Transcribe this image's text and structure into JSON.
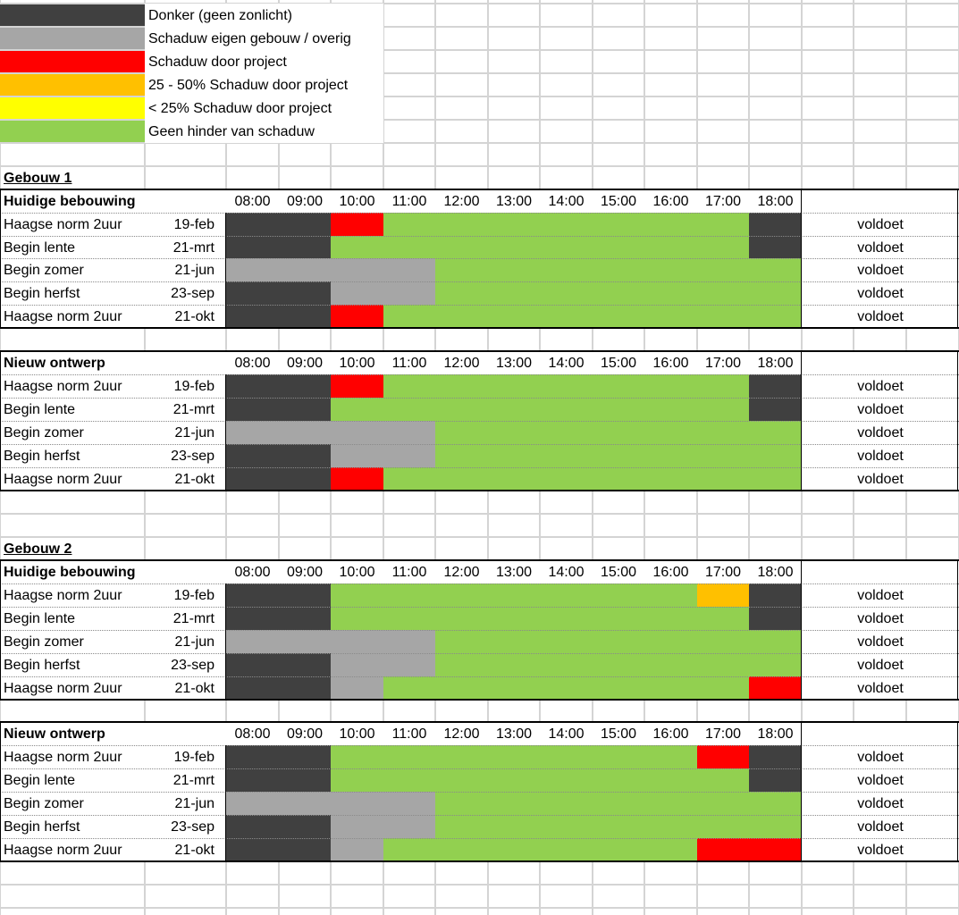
{
  "colors": {
    "dark": "#404040",
    "gray": "#a6a6a6",
    "red": "#ff0000",
    "orange": "#ffc000",
    "yellow": "#ffff00",
    "green": "#92d050"
  },
  "legend": [
    {
      "color": "dark",
      "label": "Donker (geen zonlicht)"
    },
    {
      "color": "gray",
      "label": "Schaduw eigen gebouw / overig"
    },
    {
      "color": "red",
      "label": "Schaduw door project"
    },
    {
      "color": "orange",
      "label": "25 - 50% Schaduw door project"
    },
    {
      "color": "yellow",
      "label": "< 25% Schaduw door project"
    },
    {
      "color": "green",
      "label": "Geen hinder van schaduw"
    }
  ],
  "hours": [
    "08:00",
    "09:00",
    "10:00",
    "11:00",
    "12:00",
    "13:00",
    "14:00",
    "15:00",
    "16:00",
    "17:00",
    "18:00"
  ],
  "buildings": [
    {
      "title": "Gebouw 1",
      "tables": [
        {
          "title": "Huidige bebouwing",
          "rows": [
            {
              "label": "Haagse norm 2uur",
              "date": "19-feb",
              "cells": [
                "D",
                "D",
                "R",
                "G",
                "G",
                "G",
                "G",
                "G",
                "G",
                "G",
                "D"
              ],
              "result": "voldoet"
            },
            {
              "label": "Begin lente",
              "date": "21-mrt",
              "cells": [
                "D",
                "D",
                "G",
                "G",
                "G",
                "G",
                "G",
                "G",
                "G",
                "G",
                "D"
              ],
              "result": "voldoet"
            },
            {
              "label": "Begin zomer",
              "date": "21-jun",
              "cells": [
                "S",
                "S",
                "S",
                "S",
                "G",
                "G",
                "G",
                "G",
                "G",
                "G",
                "G"
              ],
              "result": "voldoet"
            },
            {
              "label": "Begin herfst",
              "date": "23-sep",
              "cells": [
                "D",
                "D",
                "S",
                "S",
                "G",
                "G",
                "G",
                "G",
                "G",
                "G",
                "G"
              ],
              "result": "voldoet"
            },
            {
              "label": "Haagse norm 2uur",
              "date": "21-okt",
              "cells": [
                "D",
                "D",
                "R",
                "G",
                "G",
                "G",
                "G",
                "G",
                "G",
                "G",
                "G"
              ],
              "result": "voldoet"
            }
          ]
        },
        {
          "title": "Nieuw ontwerp",
          "rows": [
            {
              "label": "Haagse norm 2uur",
              "date": "19-feb",
              "cells": [
                "D",
                "D",
                "R",
                "G",
                "G",
                "G",
                "G",
                "G",
                "G",
                "G",
                "D"
              ],
              "result": "voldoet"
            },
            {
              "label": "Begin lente",
              "date": "21-mrt",
              "cells": [
                "D",
                "D",
                "G",
                "G",
                "G",
                "G",
                "G",
                "G",
                "G",
                "G",
                "D"
              ],
              "result": "voldoet"
            },
            {
              "label": "Begin zomer",
              "date": "21-jun",
              "cells": [
                "S",
                "S",
                "S",
                "S",
                "G",
                "G",
                "G",
                "G",
                "G",
                "G",
                "G"
              ],
              "result": "voldoet"
            },
            {
              "label": "Begin herfst",
              "date": "23-sep",
              "cells": [
                "D",
                "D",
                "S",
                "S",
                "G",
                "G",
                "G",
                "G",
                "G",
                "G",
                "G"
              ],
              "result": "voldoet"
            },
            {
              "label": "Haagse norm 2uur",
              "date": "21-okt",
              "cells": [
                "D",
                "D",
                "R",
                "G",
                "G",
                "G",
                "G",
                "G",
                "G",
                "G",
                "G"
              ],
              "result": "voldoet"
            }
          ]
        }
      ]
    },
    {
      "title": "Gebouw 2",
      "tables": [
        {
          "title": "Huidige bebouwing",
          "rows": [
            {
              "label": "Haagse norm 2uur",
              "date": "19-feb",
              "cells": [
                "D",
                "D",
                "G",
                "G",
                "G",
                "G",
                "G",
                "G",
                "G",
                "O",
                "D"
              ],
              "result": "voldoet"
            },
            {
              "label": "Begin lente",
              "date": "21-mrt",
              "cells": [
                "D",
                "D",
                "G",
                "G",
                "G",
                "G",
                "G",
                "G",
                "G",
                "G",
                "D"
              ],
              "result": "voldoet"
            },
            {
              "label": "Begin zomer",
              "date": "21-jun",
              "cells": [
                "S",
                "S",
                "S",
                "S",
                "G",
                "G",
                "G",
                "G",
                "G",
                "G",
                "G"
              ],
              "result": "voldoet"
            },
            {
              "label": "Begin herfst",
              "date": "23-sep",
              "cells": [
                "D",
                "D",
                "S",
                "S",
                "G",
                "G",
                "G",
                "G",
                "G",
                "G",
                "G"
              ],
              "result": "voldoet"
            },
            {
              "label": "Haagse norm 2uur",
              "date": "21-okt",
              "cells": [
                "D",
                "D",
                "S",
                "G",
                "G",
                "G",
                "G",
                "G",
                "G",
                "G",
                "R"
              ],
              "result": "voldoet"
            }
          ]
        },
        {
          "title": "Nieuw ontwerp",
          "rows": [
            {
              "label": "Haagse norm 2uur",
              "date": "19-feb",
              "cells": [
                "D",
                "D",
                "G",
                "G",
                "G",
                "G",
                "G",
                "G",
                "G",
                "R",
                "D"
              ],
              "result": "voldoet"
            },
            {
              "label": "Begin lente",
              "date": "21-mrt",
              "cells": [
                "D",
                "D",
                "G",
                "G",
                "G",
                "G",
                "G",
                "G",
                "G",
                "G",
                "D"
              ],
              "result": "voldoet"
            },
            {
              "label": "Begin zomer",
              "date": "21-jun",
              "cells": [
                "S",
                "S",
                "S",
                "S",
                "G",
                "G",
                "G",
                "G",
                "G",
                "G",
                "G"
              ],
              "result": "voldoet"
            },
            {
              "label": "Begin herfst",
              "date": "23-sep",
              "cells": [
                "D",
                "D",
                "S",
                "S",
                "G",
                "G",
                "G",
                "G",
                "G",
                "G",
                "G"
              ],
              "result": "voldoet"
            },
            {
              "label": "Haagse norm 2uur",
              "date": "21-okt",
              "cells": [
                "D",
                "D",
                "S",
                "G",
                "G",
                "G",
                "G",
                "G",
                "G",
                "R",
                "R"
              ],
              "result": "voldoet"
            }
          ]
        }
      ]
    }
  ]
}
